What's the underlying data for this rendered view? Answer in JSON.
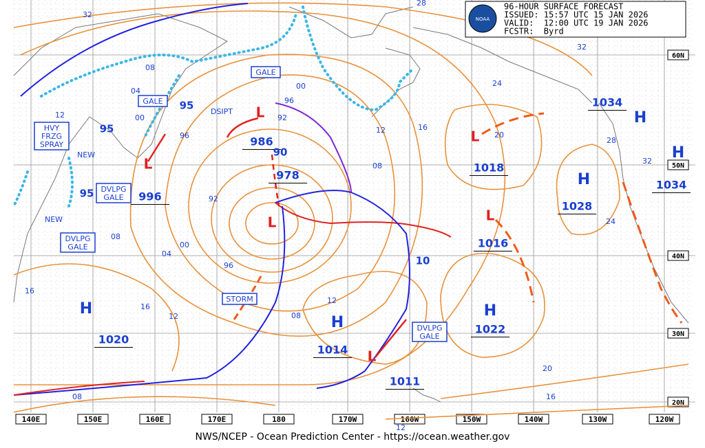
{
  "header": {
    "lines": [
      "96-HOUR SURFACE FORECAST",
      "ISSUED: 15:57 UTC 15 JAN 2026",
      "VALID:  12:00 UTC 19 JAN 2026",
      "FCSTR:  Byrd"
    ],
    "logo": "NOAA"
  },
  "longitudes": [
    "140E",
    "150E",
    "160E",
    "170E",
    "180",
    "170W",
    "160W",
    "150W",
    "140W",
    "130W",
    "120W"
  ],
  "latitudes": [
    "60N",
    "50N",
    "40N",
    "30N",
    "20N"
  ],
  "centers": [
    {
      "symbol": "H",
      "pressure": "1020"
    },
    {
      "symbol": "H",
      "pressure": "1014"
    },
    {
      "symbol": "H",
      "pressure": "1022"
    },
    {
      "symbol": "H",
      "pressure": "1028"
    },
    {
      "symbol": "H",
      "pressure": "1034"
    },
    {
      "symbol": "H",
      "pressure": "1034"
    },
    {
      "symbol": "L",
      "pressure": "996"
    },
    {
      "symbol": "L",
      "pressure": "986"
    },
    {
      "symbol": "L",
      "pressure": "978"
    },
    {
      "symbol": "L",
      "pressure": "1018"
    },
    {
      "symbol": "L",
      "pressure": "1016"
    },
    {
      "symbol": "L",
      "pressure": "1011"
    }
  ],
  "wave_labels": [
    "95",
    "95",
    "95",
    "90",
    "10"
  ],
  "isobar_labels": [
    "32",
    "28",
    "32",
    "24",
    "16",
    "12",
    "08",
    "00",
    "04",
    "00",
    "08",
    "12",
    "96",
    "92",
    "96",
    "92",
    "96",
    "04",
    "00",
    "08",
    "16",
    "16",
    "12",
    "12",
    "08",
    "20",
    "24",
    "28",
    "32",
    "20",
    "16",
    "08",
    "12"
  ],
  "boxes": [
    {
      "lines": [
        "GALE"
      ]
    },
    {
      "lines": [
        "GALE"
      ]
    },
    {
      "lines": [
        "HVY",
        "FRZG",
        "SPRAY"
      ]
    },
    {
      "lines": [
        "DVLPG",
        "GALE"
      ]
    },
    {
      "lines": [
        "DVLPG",
        "GALE"
      ]
    },
    {
      "lines": [
        "STORM"
      ]
    },
    {
      "lines": [
        "DVLPG",
        "GALE"
      ]
    }
  ],
  "notes": [
    "NEW",
    "NEW",
    "DSIPT"
  ],
  "footer": "NWS/NCEP - Ocean Prediction Center - https://ocean.weather.gov"
}
